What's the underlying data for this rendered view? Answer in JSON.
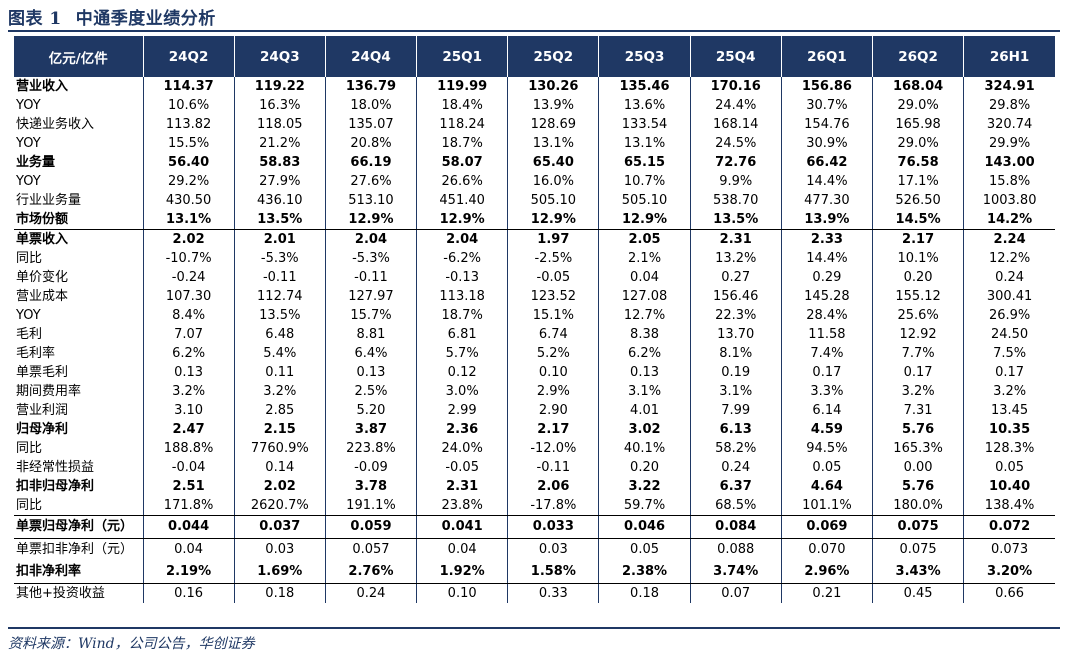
{
  "title": {
    "label": "图表 1",
    "text": "中通季度业绩分析"
  },
  "table": {
    "headers": [
      "亿元/亿件",
      "24Q2",
      "24Q3",
      "24Q4",
      "25Q1",
      "25Q2",
      "25Q3",
      "25Q4",
      "26Q1",
      "26Q2",
      "26H1"
    ],
    "rows": [
      {
        "label": "营业收入",
        "values": [
          "114.37",
          "119.22",
          "136.79",
          "119.99",
          "130.26",
          "135.46",
          "170.16",
          "156.86",
          "168.04",
          "324.91"
        ]
      },
      {
        "label": "YOY",
        "values": [
          "10.6%",
          "16.3%",
          "18.0%",
          "18.4%",
          "13.9%",
          "13.6%",
          "24.4%",
          "30.7%",
          "29.0%",
          "29.8%"
        ]
      },
      {
        "label": "快递业务收入",
        "values": [
          "113.82",
          "118.05",
          "135.07",
          "118.24",
          "128.69",
          "133.54",
          "168.14",
          "154.76",
          "165.98",
          "320.74"
        ]
      },
      {
        "label": "YOY",
        "values": [
          "15.5%",
          "21.2%",
          "20.8%",
          "18.7%",
          "13.1%",
          "13.1%",
          "24.5%",
          "30.9%",
          "29.0%",
          "29.9%"
        ]
      },
      {
        "label": "业务量",
        "values": [
          "56.40",
          "58.83",
          "66.19",
          "58.07",
          "65.40",
          "65.15",
          "72.76",
          "66.42",
          "76.58",
          "143.00"
        ]
      },
      {
        "label": "YOY",
        "values": [
          "29.2%",
          "27.9%",
          "27.6%",
          "26.6%",
          "16.0%",
          "10.7%",
          "9.9%",
          "14.4%",
          "17.1%",
          "15.8%"
        ]
      },
      {
        "label": "行业业务量",
        "values": [
          "430.50",
          "436.10",
          "513.10",
          "451.40",
          "505.10",
          "505.10",
          "538.70",
          "477.30",
          "526.50",
          "1003.80"
        ]
      },
      {
        "label": "市场份额",
        "values": [
          "13.1%",
          "13.5%",
          "12.9%",
          "12.9%",
          "12.9%",
          "12.9%",
          "13.5%",
          "13.9%",
          "14.5%",
          "14.2%"
        ]
      },
      {
        "label": "单票收入",
        "values": [
          "2.02",
          "2.01",
          "2.04",
          "2.04",
          "1.97",
          "2.05",
          "2.31",
          "2.33",
          "2.17",
          "2.24"
        ]
      },
      {
        "label": "同比",
        "values": [
          "-10.7%",
          "-5.3%",
          "-5.3%",
          "-6.2%",
          "-2.5%",
          "2.1%",
          "13.2%",
          "14.4%",
          "10.1%",
          "12.2%"
        ]
      },
      {
        "label": "单价变化",
        "values": [
          "-0.24",
          "-0.11",
          "-0.11",
          "-0.13",
          "-0.05",
          "0.04",
          "0.27",
          "0.29",
          "0.20",
          "0.24"
        ]
      },
      {
        "label": "营业成本",
        "values": [
          "107.30",
          "112.74",
          "127.97",
          "113.18",
          "123.52",
          "127.08",
          "156.46",
          "145.28",
          "155.12",
          "300.41"
        ]
      },
      {
        "label": "YOY",
        "values": [
          "8.4%",
          "13.5%",
          "15.7%",
          "18.7%",
          "15.1%",
          "12.7%",
          "22.3%",
          "28.4%",
          "25.6%",
          "26.9%"
        ]
      },
      {
        "label": "毛利",
        "values": [
          "7.07",
          "6.48",
          "8.81",
          "6.81",
          "6.74",
          "8.38",
          "13.70",
          "11.58",
          "12.92",
          "24.50"
        ]
      },
      {
        "label": "毛利率",
        "values": [
          "6.2%",
          "5.4%",
          "6.4%",
          "5.7%",
          "5.2%",
          "6.2%",
          "8.1%",
          "7.4%",
          "7.7%",
          "7.5%"
        ]
      },
      {
        "label": "单票毛利",
        "values": [
          "0.13",
          "0.11",
          "0.13",
          "0.12",
          "0.10",
          "0.13",
          "0.19",
          "0.17",
          "0.17",
          "0.17"
        ]
      },
      {
        "label": "期间费用率",
        "values": [
          "3.2%",
          "3.2%",
          "2.5%",
          "3.0%",
          "2.9%",
          "3.1%",
          "3.1%",
          "3.3%",
          "3.2%",
          "3.2%"
        ]
      },
      {
        "label": "营业利润",
        "values": [
          "3.10",
          "2.85",
          "5.20",
          "2.99",
          "2.90",
          "4.01",
          "7.99",
          "6.14",
          "7.31",
          "13.45"
        ]
      },
      {
        "label": "归母净利",
        "values": [
          "2.47",
          "2.15",
          "3.87",
          "2.36",
          "2.17",
          "3.02",
          "6.13",
          "4.59",
          "5.76",
          "10.35"
        ]
      },
      {
        "label": "同比",
        "values": [
          "188.8%",
          "7760.9%",
          "223.8%",
          "24.0%",
          "-12.0%",
          "40.1%",
          "58.2%",
          "94.5%",
          "165.3%",
          "128.3%"
        ]
      },
      {
        "label": "非经常性损益",
        "values": [
          "-0.04",
          "0.14",
          "-0.09",
          "-0.05",
          "-0.11",
          "0.20",
          "0.24",
          "0.05",
          "0.00",
          "0.05"
        ]
      },
      {
        "label": "扣非归母净利",
        "values": [
          "2.51",
          "2.02",
          "3.78",
          "2.31",
          "2.06",
          "3.22",
          "6.37",
          "4.64",
          "5.76",
          "10.40"
        ]
      },
      {
        "label": "同比",
        "values": [
          "171.8%",
          "2620.7%",
          "191.1%",
          "23.8%",
          "-17.8%",
          "59.7%",
          "68.5%",
          "101.1%",
          "180.0%",
          "138.4%"
        ]
      },
      {
        "label": "单票归母净利（元）",
        "values": [
          "0.044",
          "0.037",
          "0.059",
          "0.041",
          "0.033",
          "0.046",
          "0.084",
          "0.069",
          "0.075",
          "0.072"
        ]
      },
      {
        "label": "单票扣非净利（元）",
        "values": [
          "0.04",
          "0.03",
          "0.057",
          "0.04",
          "0.03",
          "0.05",
          "0.088",
          "0.070",
          "0.075",
          "0.073"
        ]
      },
      {
        "label": "扣非净利率",
        "values": [
          "2.19%",
          "1.69%",
          "2.76%",
          "1.92%",
          "1.58%",
          "2.38%",
          "3.74%",
          "2.96%",
          "3.43%",
          "3.20%"
        ]
      },
      {
        "label": "其他+投资收益",
        "values": [
          "0.16",
          "0.18",
          "0.24",
          "0.10",
          "0.33",
          "0.18",
          "0.07",
          "0.21",
          "0.45",
          "0.66"
        ]
      }
    ]
  },
  "source": "资料来源：Wind，公司公告，华创证券"
}
